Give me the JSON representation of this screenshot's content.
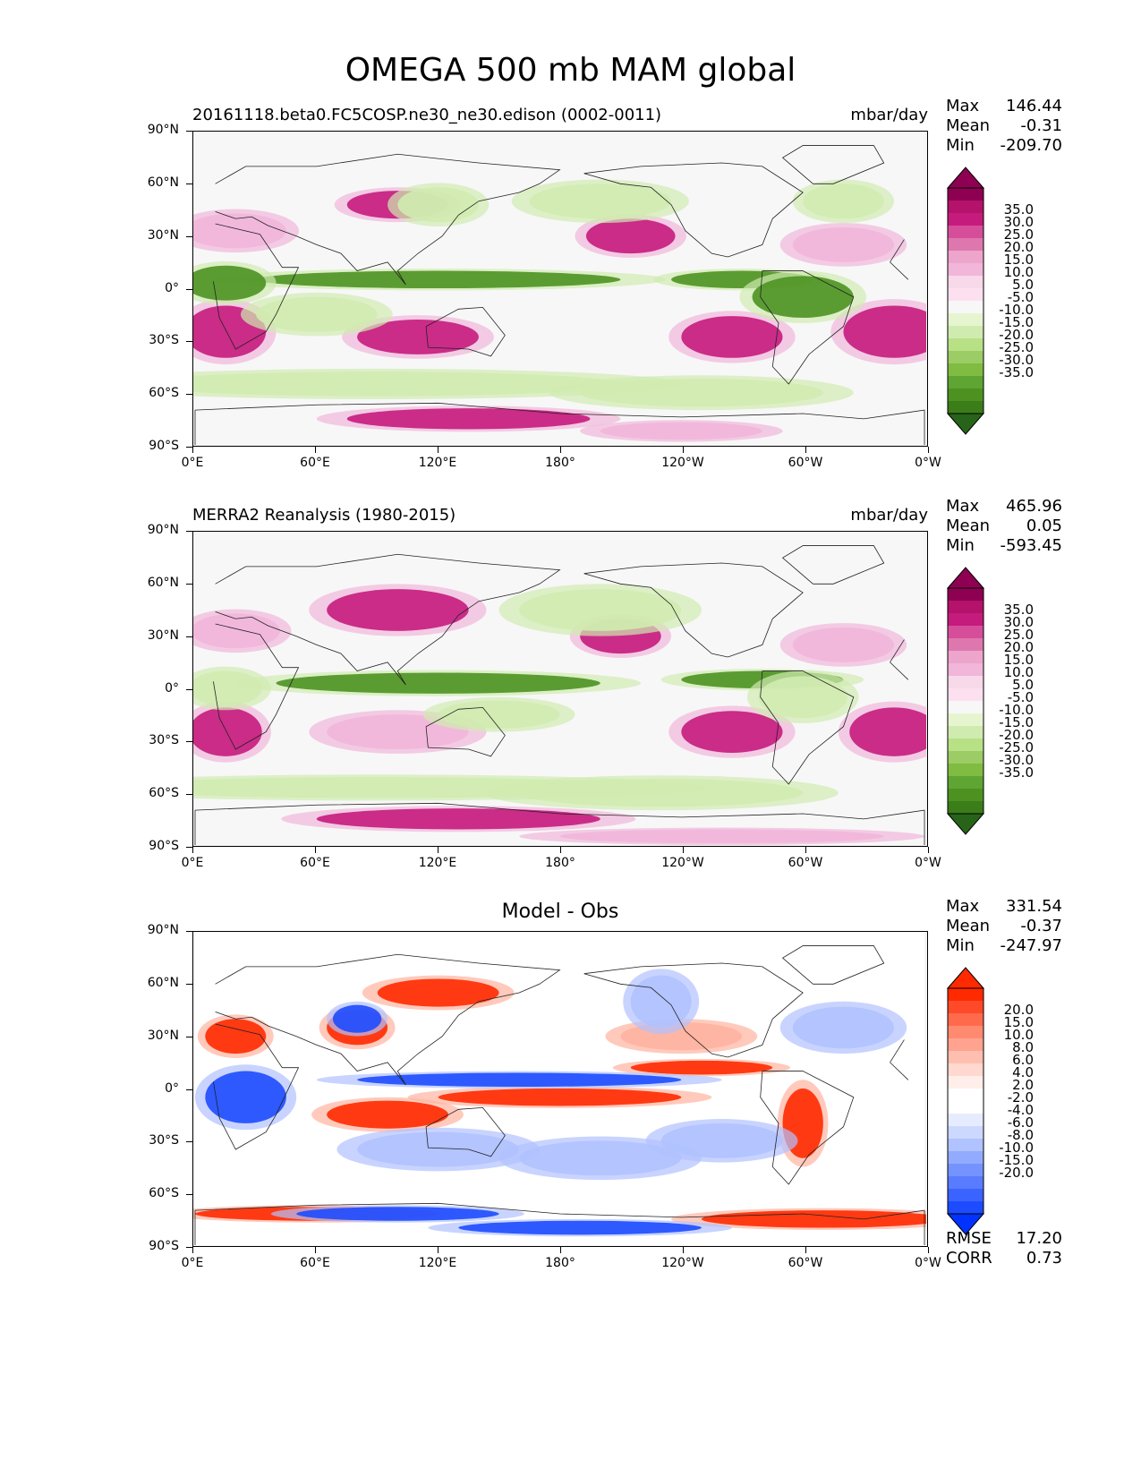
{
  "figure": {
    "title": "OMEGA 500 mb MAM global"
  },
  "axes": {
    "lat_ticks": [
      "90°N",
      "60°N",
      "30°N",
      "0°",
      "30°S",
      "60°S",
      "90°S"
    ],
    "lon_ticks": [
      "0°E",
      "60°E",
      "120°E",
      "180°",
      "120°W",
      "60°W",
      "0°W"
    ]
  },
  "panels": [
    {
      "title_left": "20161118.beta0.FC5COSP.ne30_ne30.edison (0002-0011)",
      "title_right": "mbar/day",
      "title_center": "",
      "stats": [
        {
          "label": "Max",
          "value": "146.44"
        },
        {
          "label": "Mean",
          "value": "-0.31"
        },
        {
          "label": "Min",
          "value": "-209.70"
        }
      ],
      "colorbar_labels": [
        "35.0",
        "30.0",
        "25.0",
        "20.0",
        "15.0",
        "10.0",
        "5.0",
        "-5.0",
        "-10.0",
        "-15.0",
        "-20.0",
        "-25.0",
        "-30.0",
        "-35.0"
      ],
      "colorbar_colors": [
        "#8e0152",
        "#8e0152",
        "#b4126b",
        "#c51b7d",
        "#d64e9a",
        "#de77ae",
        "#eda5cb",
        "#f1b6da",
        "#f7d9ea",
        "#fde0ef",
        "#f7f7f7",
        "#e6f5d0",
        "#d0ebb0",
        "#b8e186",
        "#9ccc65",
        "#7fbc41",
        "#5fa533",
        "#4d9221",
        "#3a7d19",
        "#276419"
      ]
    },
    {
      "title_left": "MERRA2 Reanalysis (1980-2015)",
      "title_right": "mbar/day",
      "title_center": "",
      "stats": [
        {
          "label": "Max",
          "value": "465.96"
        },
        {
          "label": "Mean",
          "value": "0.05"
        },
        {
          "label": "Min",
          "value": "-593.45"
        }
      ],
      "colorbar_labels": [
        "35.0",
        "30.0",
        "25.0",
        "20.0",
        "15.0",
        "10.0",
        "5.0",
        "-5.0",
        "-10.0",
        "-15.0",
        "-20.0",
        "-25.0",
        "-30.0",
        "-35.0"
      ],
      "colorbar_colors": [
        "#8e0152",
        "#8e0152",
        "#b4126b",
        "#c51b7d",
        "#d64e9a",
        "#de77ae",
        "#eda5cb",
        "#f1b6da",
        "#f7d9ea",
        "#fde0ef",
        "#f7f7f7",
        "#e6f5d0",
        "#d0ebb0",
        "#b8e186",
        "#9ccc65",
        "#7fbc41",
        "#5fa533",
        "#4d9221",
        "#3a7d19",
        "#276419"
      ]
    },
    {
      "title_left": "",
      "title_right": "",
      "title_center": "Model - Obs",
      "stats": [
        {
          "label": "Max",
          "value": "331.54"
        },
        {
          "label": "Mean",
          "value": "-0.37"
        },
        {
          "label": "Min",
          "value": "-247.97"
        }
      ],
      "colorbar_labels": [
        "20.0",
        "15.0",
        "10.0",
        "8.0",
        "6.0",
        "4.0",
        "2.0",
        "-2.0",
        "-4.0",
        "-6.0",
        "-8.0",
        "-10.0",
        "-15.0",
        "-20.0"
      ],
      "colorbar_colors": [
        "#ff2a00",
        "#ff2a00",
        "#ff4a2a",
        "#ff6a4d",
        "#ff8a70",
        "#ffa390",
        "#ffbfb0",
        "#ffd9cf",
        "#ffeeea",
        "#ffffff",
        "#ffffff",
        "#e6ecff",
        "#cdd8ff",
        "#b0c2ff",
        "#93abff",
        "#7593ff",
        "#587bff",
        "#3a63ff",
        "#1d4bff",
        "#0033ff"
      ],
      "extra_stats": [
        {
          "label": "RMSE",
          "value": "17.20"
        },
        {
          "label": "CORR",
          "value": "0.73"
        }
      ]
    }
  ],
  "map_palettes": {
    "pink_green": {
      "pos": "#c51b7d",
      "pos_light": "#f1b6da",
      "neutral": "#f7f7f7",
      "neg_light": "#d0ebb0",
      "neg": "#4d9221",
      "neg_dark": "#276419",
      "pos_dark": "#8e0152"
    },
    "red_blue": {
      "pos": "#ff2a00",
      "pos_light": "#ffb3a0",
      "neutral": "#ffffff",
      "neg_light": "#b0c2ff",
      "neg": "#1d4bff"
    }
  }
}
